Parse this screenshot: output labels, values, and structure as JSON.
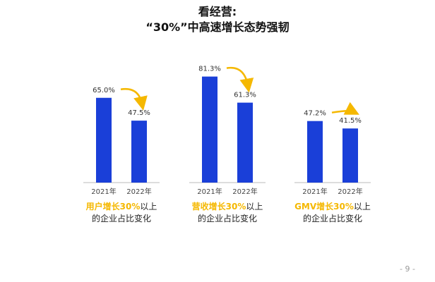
{
  "title": {
    "line1": "看经营:",
    "line2": "“30%”中高速增长态势强韧"
  },
  "colors": {
    "bar": "#1a3fd8",
    "arrow": "#f5b800",
    "axis": "#bbbbbb",
    "highlight": "#f5b800"
  },
  "chart_data": {
    "type": "bar",
    "groups": [
      {
        "categories": [
          "2021年",
          "2022年"
        ],
        "values": [
          65.0,
          47.5
        ],
        "value_labels": [
          "65.0%",
          "47.5%"
        ],
        "caption_highlight": "用户增长30%",
        "caption_rest_line1": "以上",
        "caption_line2": "的企业占比变化"
      },
      {
        "categories": [
          "2021年",
          "2022年"
        ],
        "values": [
          81.3,
          61.3
        ],
        "value_labels": [
          "81.3%",
          "61.3%"
        ],
        "caption_highlight": "营收增长30%",
        "caption_rest_line1": "以上",
        "caption_line2": "的企业占比变化"
      },
      {
        "categories": [
          "2021年",
          "2022年"
        ],
        "values": [
          47.2,
          41.5
        ],
        "value_labels": [
          "47.2%",
          "41.5%"
        ],
        "caption_highlight": "GMV增长30%",
        "caption_rest_line1": "以上",
        "caption_line2": "的企业占比变化"
      }
    ],
    "ylim": [
      0,
      100
    ]
  },
  "page_number": "- 9 -"
}
